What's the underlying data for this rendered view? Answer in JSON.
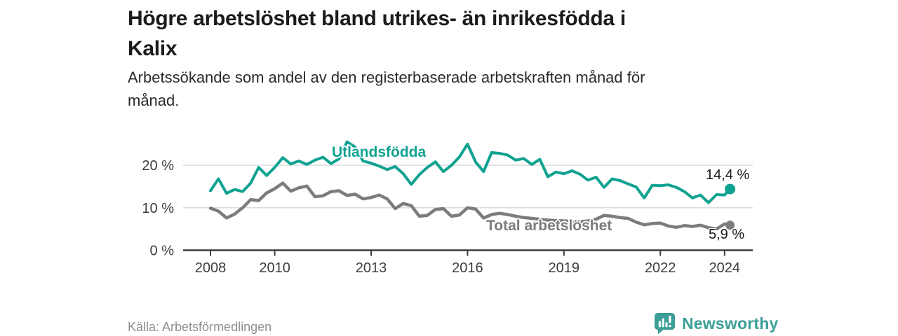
{
  "title_lines": [
    "Högre arbetslöshet bland utrikes- än inrikesfödda i",
    "Kalix"
  ],
  "subtitle_lines": [
    "Arbetssökande som andel av den registerbaserade arbetskraften månad för",
    "månad."
  ],
  "source": "Källa: Arbetsförmedlingen",
  "branding": {
    "name": "Newsworthy",
    "logo_icon": "bar-chart-speech-bubble",
    "color": "#3b9e97"
  },
  "colors": {
    "accent_teal": "#10a291",
    "line_gray": "#7c7c7c",
    "grid": "#d8d8d8",
    "axis": "#3c3c3c",
    "text_dark": "#1b1b1b",
    "text_muted": "#8a9093"
  },
  "chart_data": {
    "type": "line",
    "title": "Högre arbetslöshet bland utrikes- än inrikesfödda i Kalix",
    "subtitle": "Arbetssökande som andel av den registerbaserade arbetskraften månad för månad.",
    "xlabel": "",
    "ylabel": "",
    "grid": "horizontal",
    "legend": "inline-labels",
    "xlim": [
      2006.95,
      2024.9
    ],
    "ylim": [
      0,
      27
    ],
    "x_ticks": [
      2008,
      2010,
      2013,
      2016,
      2019,
      2022,
      2024
    ],
    "y_ticks": [
      0,
      10,
      20
    ],
    "y_tick_suffix": " %",
    "x": [
      2008.0,
      2008.25,
      2008.5,
      2008.75,
      2009.0,
      2009.25,
      2009.5,
      2009.75,
      2010.0,
      2010.25,
      2010.5,
      2010.75,
      2011.0,
      2011.25,
      2011.5,
      2011.75,
      2012.0,
      2012.25,
      2012.5,
      2012.75,
      2013.0,
      2013.25,
      2013.5,
      2013.75,
      2014.0,
      2014.25,
      2014.5,
      2014.75,
      2015.0,
      2015.25,
      2015.5,
      2015.75,
      2016.0,
      2016.25,
      2016.5,
      2016.75,
      2017.0,
      2017.25,
      2017.5,
      2017.75,
      2018.0,
      2018.25,
      2018.5,
      2018.75,
      2019.0,
      2019.25,
      2019.5,
      2019.75,
      2020.0,
      2020.25,
      2020.5,
      2020.75,
      2021.0,
      2021.25,
      2021.5,
      2021.75,
      2022.0,
      2022.25,
      2022.5,
      2022.75,
      2023.0,
      2023.25,
      2023.5,
      2023.75,
      2024.0,
      2024.17
    ],
    "series": [
      {
        "name": "Utlandsfödda",
        "color": "#10a291",
        "end_label": "14,4 %",
        "end_value": 14.4,
        "line_width": 4,
        "values": [
          14.0,
          16.8,
          13.4,
          14.3,
          13.8,
          15.8,
          19.5,
          17.6,
          19.5,
          21.8,
          20.3,
          21.0,
          20.2,
          21.2,
          21.9,
          20.4,
          21.5,
          25.5,
          24.3,
          21.0,
          20.5,
          19.8,
          19.0,
          19.7,
          18.0,
          15.5,
          17.8,
          19.5,
          20.8,
          18.5,
          20.0,
          22.0,
          25.0,
          20.8,
          18.5,
          23.0,
          22.8,
          22.4,
          21.2,
          21.6,
          20.2,
          21.4,
          17.3,
          18.4,
          18.0,
          18.7,
          17.9,
          16.5,
          17.2,
          14.8,
          16.8,
          16.4,
          15.6,
          14.9,
          12.3,
          15.3,
          15.2,
          15.4,
          14.8,
          13.8,
          12.3,
          13.0,
          11.2,
          13.1,
          13.0,
          14.4
        ]
      },
      {
        "name": "Total arbetslöshet",
        "color": "#7c7c7c",
        "end_label": "5,9 %",
        "end_value": 5.9,
        "line_width": 4.5,
        "values": [
          9.9,
          9.2,
          7.6,
          8.5,
          10.0,
          11.9,
          11.7,
          13.5,
          14.5,
          15.8,
          13.9,
          14.7,
          15.1,
          12.6,
          12.8,
          13.8,
          14.0,
          12.9,
          13.2,
          12.1,
          12.4,
          13.0,
          12.1,
          9.8,
          11.0,
          10.5,
          8.0,
          8.2,
          9.6,
          9.8,
          8.0,
          8.3,
          10.0,
          9.7,
          7.6,
          8.4,
          8.7,
          8.4,
          8.0,
          7.7,
          7.5,
          7.3,
          7.1,
          7.0,
          6.9,
          6.8,
          6.7,
          6.9,
          7.3,
          8.2,
          8.0,
          7.7,
          7.5,
          6.6,
          6.0,
          6.3,
          6.4,
          5.7,
          5.4,
          5.8,
          5.6,
          5.9,
          5.3,
          5.0,
          6.2,
          5.9
        ]
      }
    ]
  }
}
